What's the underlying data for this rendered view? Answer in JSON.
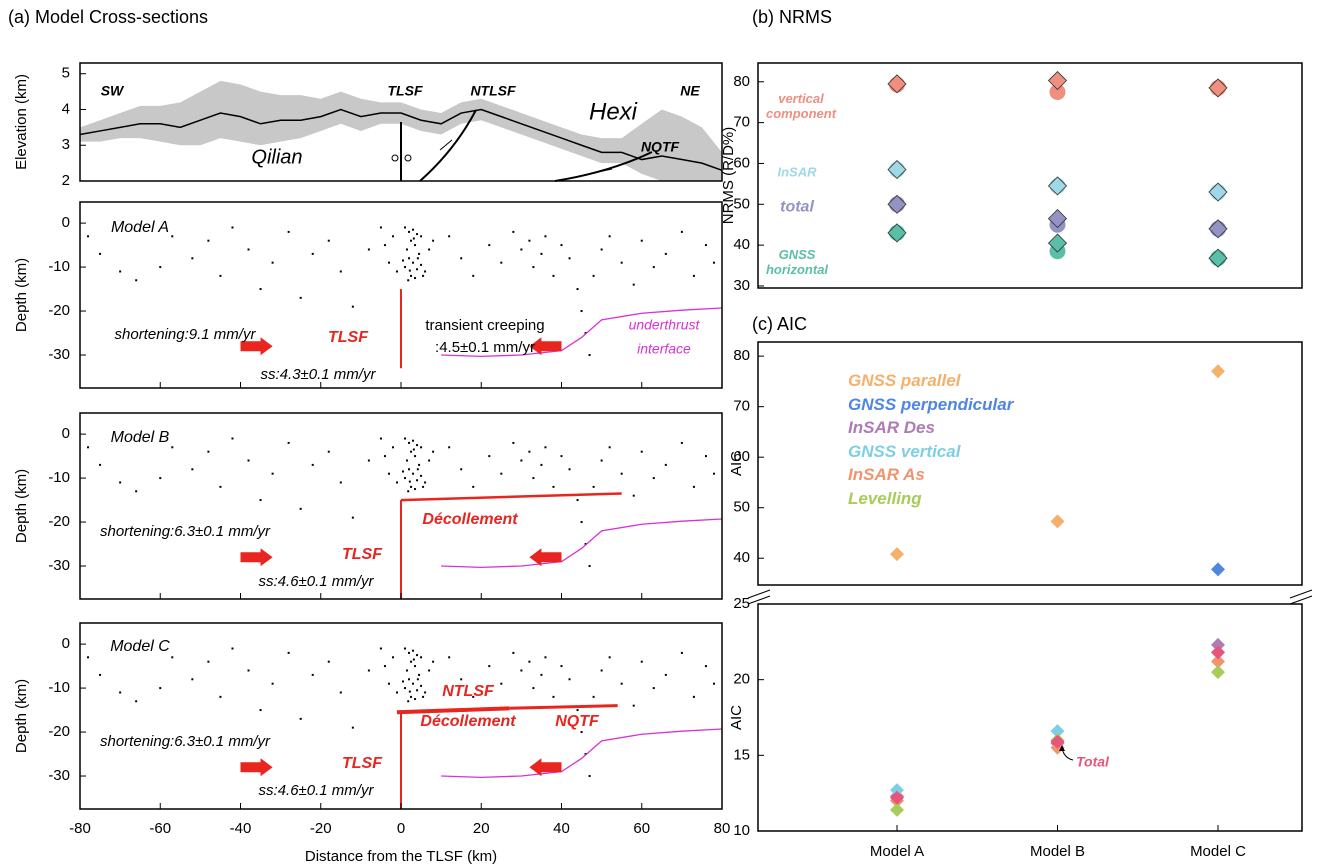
{
  "chart_data": [
    {
      "type": "cross-section",
      "title": "(a) Model Cross-sections",
      "xlabel": "Distance from the TLSF (km)",
      "ylabel": "Depth (km)",
      "xlim": [
        -80,
        80
      ],
      "xticks": [
        -80,
        -60,
        -40,
        -20,
        0,
        20,
        40,
        60,
        80
      ],
      "ylim": [
        -37.5,
        4.8
      ],
      "yticks": [
        0,
        -10,
        -20,
        -30
      ],
      "elevation": {
        "ylabel": "Elevation (km)",
        "ylim": [
          2,
          5.3
        ],
        "yticks": [
          2,
          3,
          4,
          5
        ],
        "line_color": "#000000",
        "band_color": "#c8c8c8",
        "x": [
          -80,
          -75,
          -70,
          -65,
          -60,
          -55,
          -50,
          -45,
          -40,
          -35,
          -30,
          -25,
          -20,
          -15,
          -10,
          -5,
          0,
          5,
          10,
          15,
          20,
          25,
          30,
          35,
          40,
          45,
          50,
          55,
          60,
          65,
          70,
          75,
          80
        ],
        "mean": [
          3.3,
          3.4,
          3.5,
          3.6,
          3.6,
          3.5,
          3.7,
          3.9,
          3.8,
          3.6,
          3.7,
          3.7,
          3.8,
          4.0,
          3.8,
          3.9,
          3.9,
          3.7,
          3.6,
          3.9,
          4.0,
          3.8,
          3.6,
          3.4,
          3.2,
          3.0,
          2.8,
          2.8,
          2.6,
          2.7,
          2.6,
          2.5,
          2.3
        ],
        "upper": [
          3.5,
          3.7,
          3.9,
          4.1,
          4.1,
          4.2,
          4.5,
          4.8,
          4.7,
          4.5,
          4.4,
          4.4,
          4.3,
          4.5,
          4.3,
          4.2,
          4.2,
          4.0,
          3.9,
          4.2,
          4.3,
          4.1,
          3.9,
          3.7,
          3.5,
          3.3,
          3.2,
          3.2,
          3.6,
          4.0,
          3.8,
          3.5,
          2.8
        ],
        "lower": [
          3.1,
          3.1,
          3.2,
          3.2,
          3.1,
          3.0,
          3.0,
          3.2,
          3.1,
          3.0,
          3.1,
          3.2,
          3.4,
          3.6,
          3.4,
          3.6,
          3.6,
          3.4,
          3.3,
          3.6,
          3.7,
          3.5,
          3.3,
          3.1,
          2.9,
          2.7,
          2.5,
          2.5,
          2.2,
          2.0,
          2.0,
          2.0,
          2.0
        ],
        "annotations": [
          "SW",
          "TLSF",
          "NTLSF",
          "Hexi",
          "NE",
          "Qilian",
          "NQTF"
        ]
      },
      "seismicity": {
        "color": "#000000",
        "x": [
          1,
          2,
          3,
          4,
          5,
          2.5,
          3.5,
          1.5,
          4.5,
          2,
          3,
          5,
          1,
          4,
          6,
          2.5,
          3.5,
          -2,
          -4,
          -3,
          -1,
          7,
          8,
          -5,
          0.5,
          5.5,
          1.8,
          3.2,
          4.2,
          2.2,
          -78,
          -75,
          -70,
          -66,
          -60,
          -57,
          -52,
          -48,
          -45,
          -42,
          -38,
          -35,
          -32,
          -28,
          -25,
          -22,
          -18,
          -15,
          -12,
          -8,
          12,
          15,
          18,
          22,
          25,
          28,
          30,
          32,
          33,
          35,
          36,
          38,
          40,
          42,
          44,
          45,
          46,
          47,
          48,
          50,
          52,
          55,
          58,
          60,
          63,
          66,
          70,
          73,
          76,
          78
        ],
        "y": [
          -1,
          -2,
          -1.5,
          -2.5,
          -3,
          -4,
          -5,
          -6,
          -7,
          -8,
          -9,
          -9.5,
          -10,
          -10.5,
          -11,
          -12,
          -12.5,
          -3,
          -5,
          -9,
          -11,
          -6,
          -4,
          -1,
          -8.5,
          -12,
          -13,
          -3.5,
          -8,
          -10.8,
          -3,
          -7,
          -11,
          -13,
          -10,
          -3,
          -8,
          -4,
          -12,
          -1,
          -6,
          -15,
          -9,
          -2,
          -17,
          -7,
          -4,
          -11,
          -19,
          -6,
          -3,
          -8,
          -12,
          -5,
          -9,
          -2,
          -6,
          -4,
          -10,
          -7,
          -3,
          -12,
          -5,
          -8,
          -15,
          -20,
          -25,
          -30,
          -12,
          -6,
          -3,
          -9,
          -14,
          -4,
          -10,
          -7,
          -2,
          -12,
          -5,
          -9
        ]
      },
      "interface": {
        "color": "#d633d6",
        "x": [
          10,
          20,
          30,
          40,
          45,
          50,
          60,
          70,
          80
        ],
        "y": [
          -30,
          -30.3,
          -30,
          -29,
          -26,
          -22,
          -20.5,
          -19.8,
          -19.3
        ]
      },
      "fault_color": "#e8251f",
      "models": [
        {
          "annotations": [
            "Model A",
            "shortening:9.1 mm/yr",
            "TLSF",
            "transient creeping",
            ":4.5±0.1 mm/yr",
            "underthrust",
            "interface",
            "ss:4.3±0.1 mm/yr"
          ]
        },
        {
          "annotations": [
            "Model B",
            "Décollement",
            "shortening:6.3±0.1 mm/yr",
            "TLSF",
            "ss:4.6±0.1 mm/yr"
          ]
        },
        {
          "annotations": [
            "Model C",
            "NTLSF",
            "Décollement",
            "NQTF",
            "shortening:6.3±0.1 mm/yr",
            "TLSF",
            "ss:4.6±0.1 mm/yr"
          ]
        }
      ]
    },
    {
      "type": "scatter",
      "title": "(b) NRMS",
      "ylabel": "NRMS (R/D%)",
      "ylim": [
        29.5,
        84.6
      ],
      "yticks": [
        30,
        40,
        50,
        60,
        70,
        80
      ],
      "series": [
        {
          "name": "vertical component",
          "color": "#ee8f80",
          "values": [
            79.5,
            80.3,
            78.5
          ],
          "alt_values": [
            79.3,
            77.5,
            78.5
          ]
        },
        {
          "name": "InSAR",
          "color": "#9fd8e6",
          "values": [
            58.5,
            54.5,
            53
          ],
          "alt_values": [
            58.5,
            54.5,
            53
          ]
        },
        {
          "name": "total",
          "color": "#9494c4",
          "values": [
            50,
            46.5,
            44
          ],
          "alt_values": [
            50,
            45,
            44
          ]
        },
        {
          "name": "GNSS horizontal",
          "color": "#5bbfa8",
          "values": [
            43,
            40.5,
            36.8
          ],
          "alt_values": [
            43,
            38.5,
            36.8
          ]
        }
      ]
    },
    {
      "type": "broken-scatter",
      "title": "(c) AIC",
      "ylabel": "AIC",
      "categories": [
        "Model A",
        "Model B",
        "Model C"
      ],
      "upper": {
        "ylim": [
          34.7,
          82.8
        ],
        "yticks": [
          40,
          50,
          60,
          70,
          80
        ]
      },
      "lower": {
        "ylim": [
          10,
          25
        ],
        "yticks": [
          10,
          15,
          20,
          25
        ]
      },
      "series": [
        {
          "name": "GNSS parallel",
          "color": "#f5b06b",
          "values": [
            40.8,
            47.3,
            77
          ]
        },
        {
          "name": "GNSS perpendicular",
          "color": "#4f86e0",
          "values": [
            null,
            null,
            37.8
          ]
        },
        {
          "name": "InSAR Des",
          "color": "#b07ab8",
          "values": [
            12.3,
            15.8,
            22.3
          ]
        },
        {
          "name": "GNSS vertical",
          "color": "#7ecfe6",
          "values": [
            12.7,
            16.6,
            21.8
          ]
        },
        {
          "name": "InSAR As",
          "color": "#f0946e",
          "values": [
            12.0,
            15.5,
            21.2
          ]
        },
        {
          "name": "Levelling",
          "color": "#a8cc5a",
          "values": [
            11.4,
            16.0,
            20.5
          ]
        }
      ],
      "total": {
        "name": "Total",
        "color": "#e8557a",
        "values": [
          12.2,
          15.9,
          21.8
        ]
      }
    }
  ]
}
